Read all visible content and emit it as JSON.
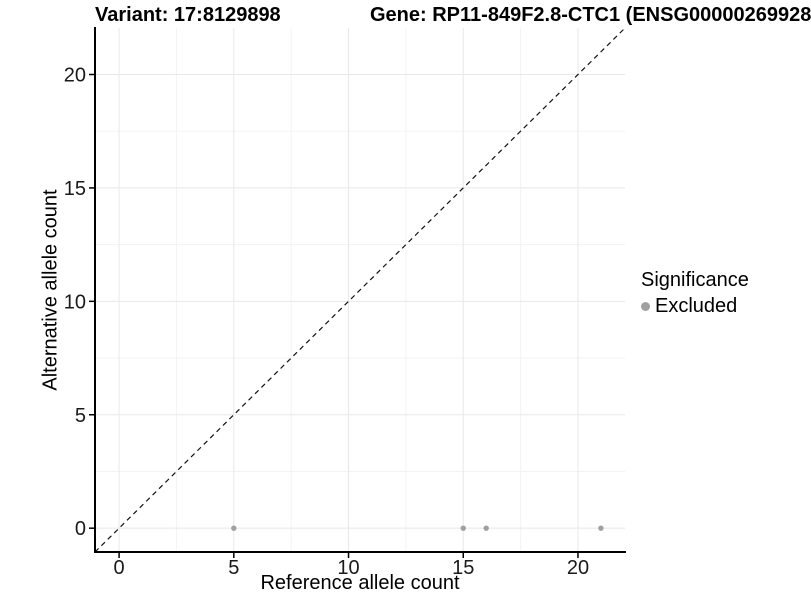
{
  "titles": {
    "variant": "Variant: 17:8129898",
    "gene": "Gene: RP11-849F2.8-CTC1 (ENSG00000269928"
  },
  "chart_data": {
    "type": "scatter",
    "xlabel": "Reference allele count",
    "ylabel": "Alternative allele count",
    "xlim": [
      -1.05,
      22.05
    ],
    "ylim": [
      -1.05,
      22.05
    ],
    "x_ticks": [
      0,
      5,
      10,
      15,
      20
    ],
    "y_ticks": [
      0,
      5,
      10,
      15,
      20
    ],
    "x_minor_ticks": [
      2.5,
      7.5,
      12.5,
      17.5
    ],
    "y_minor_ticks": [
      2.5,
      7.5,
      12.5,
      17.5
    ],
    "grid": true,
    "identity_line": {
      "equation": "y = x",
      "style": "dashed",
      "color": "#111111"
    },
    "series": [
      {
        "name": "Excluded",
        "color": "#a0a0a0",
        "points": [
          {
            "x": 5,
            "y": 0
          },
          {
            "x": 15,
            "y": 0
          },
          {
            "x": 16,
            "y": 0
          },
          {
            "x": 21,
            "y": 0
          }
        ]
      }
    ],
    "legend": {
      "position": "right",
      "title": "Significance",
      "items": [
        {
          "label": "Excluded",
          "color": "#a0a0a0",
          "marker": "circle-icon"
        }
      ]
    }
  },
  "colors": {
    "background": "#ffffff",
    "grid_major": "#e8e8e8",
    "grid_minor": "#f3f3f3",
    "axis_line": "#000000",
    "tick_label": "#1a1a1a",
    "point_gray": "#a0a0a0"
  }
}
